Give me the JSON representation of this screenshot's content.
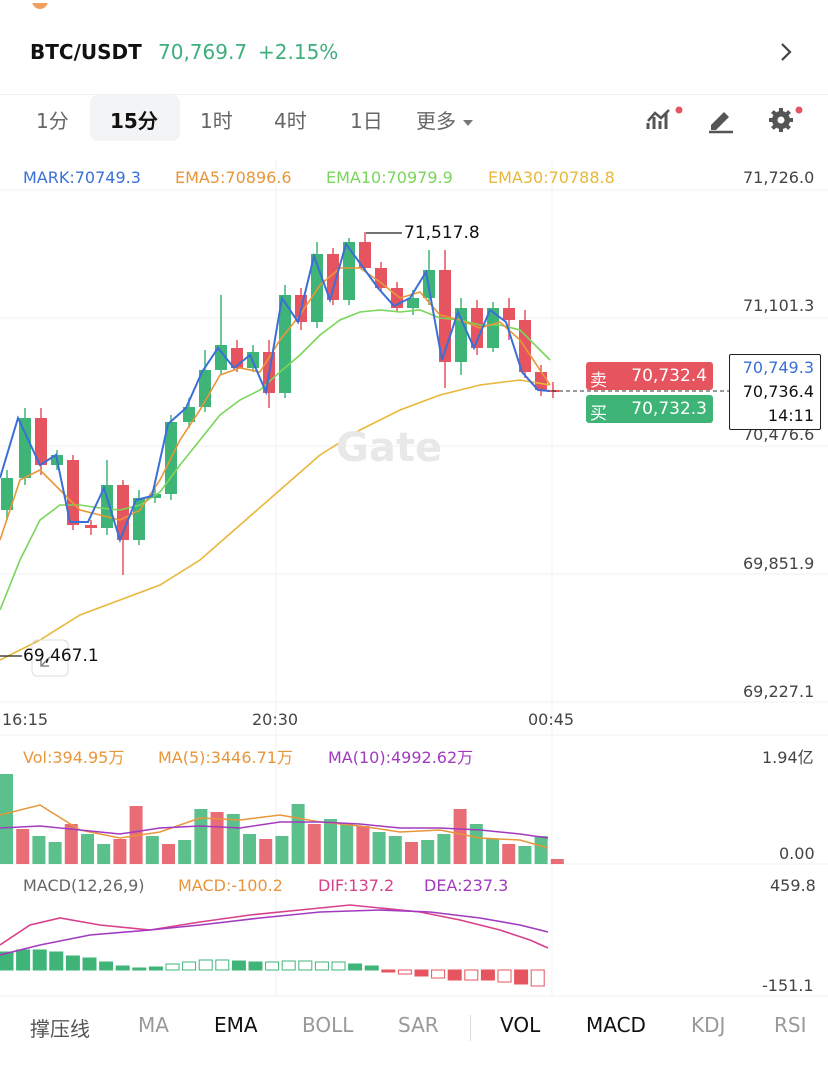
{
  "header": {
    "pair": "BTC/USDT",
    "price": "70,769.7",
    "change": "+2.15%"
  },
  "timeframes": [
    "1分",
    "15分",
    "1时",
    "4时",
    "1日",
    "更多"
  ],
  "timeframe_selected": "15分",
  "main_chart": {
    "legend": {
      "mark": "MARK:70749.3",
      "ema5": "EMA5:70896.6",
      "ema10": "EMA10:70979.9",
      "ema30": "EMA30:70788.8"
    },
    "y_axis": [
      "71,726.0",
      "71,101.3",
      "70,476.6",
      "69,851.9",
      "69,227.1"
    ],
    "x_axis": [
      "16:15",
      "20:30",
      "00:45"
    ],
    "high_marker": "71,517.8",
    "low_marker": "69,467.1",
    "watermark": "Gate",
    "sell_label": "卖",
    "sell_price": "70,732.4",
    "buy_label": "买",
    "buy_price": "70,732.3",
    "box_mark": "70,749.3",
    "box_last": "70,736.4",
    "box_countdown": "14:11"
  },
  "vol_panel": {
    "legend_vol": "Vol:394.95万",
    "legend_ma5": "MA(5):3446.71万",
    "legend_ma10": "MA(10):4992.62万",
    "y_top": "1.94亿",
    "y_bottom": "0.00"
  },
  "macd_panel": {
    "legend_title": "MACD(12,26,9)",
    "legend_macd": "MACD:-100.2",
    "legend_dif": "DIF:137.2",
    "legend_dea": "DEA:237.3",
    "y_top": "459.8",
    "y_bottom": "-151.1"
  },
  "bottom_tabs": [
    "撑压线",
    "MA",
    "EMA",
    "BOLL",
    "SAR",
    "VOL",
    "MACD",
    "KDJ",
    "RSI"
  ],
  "colors": {
    "up": "#3eb577",
    "down": "#e5545f",
    "mark": "#3a6fd8",
    "ema5": "#e8963a",
    "ema10": "#7ad65a",
    "ema30": "#e8b83a",
    "ma10": "#a23ac0"
  }
}
